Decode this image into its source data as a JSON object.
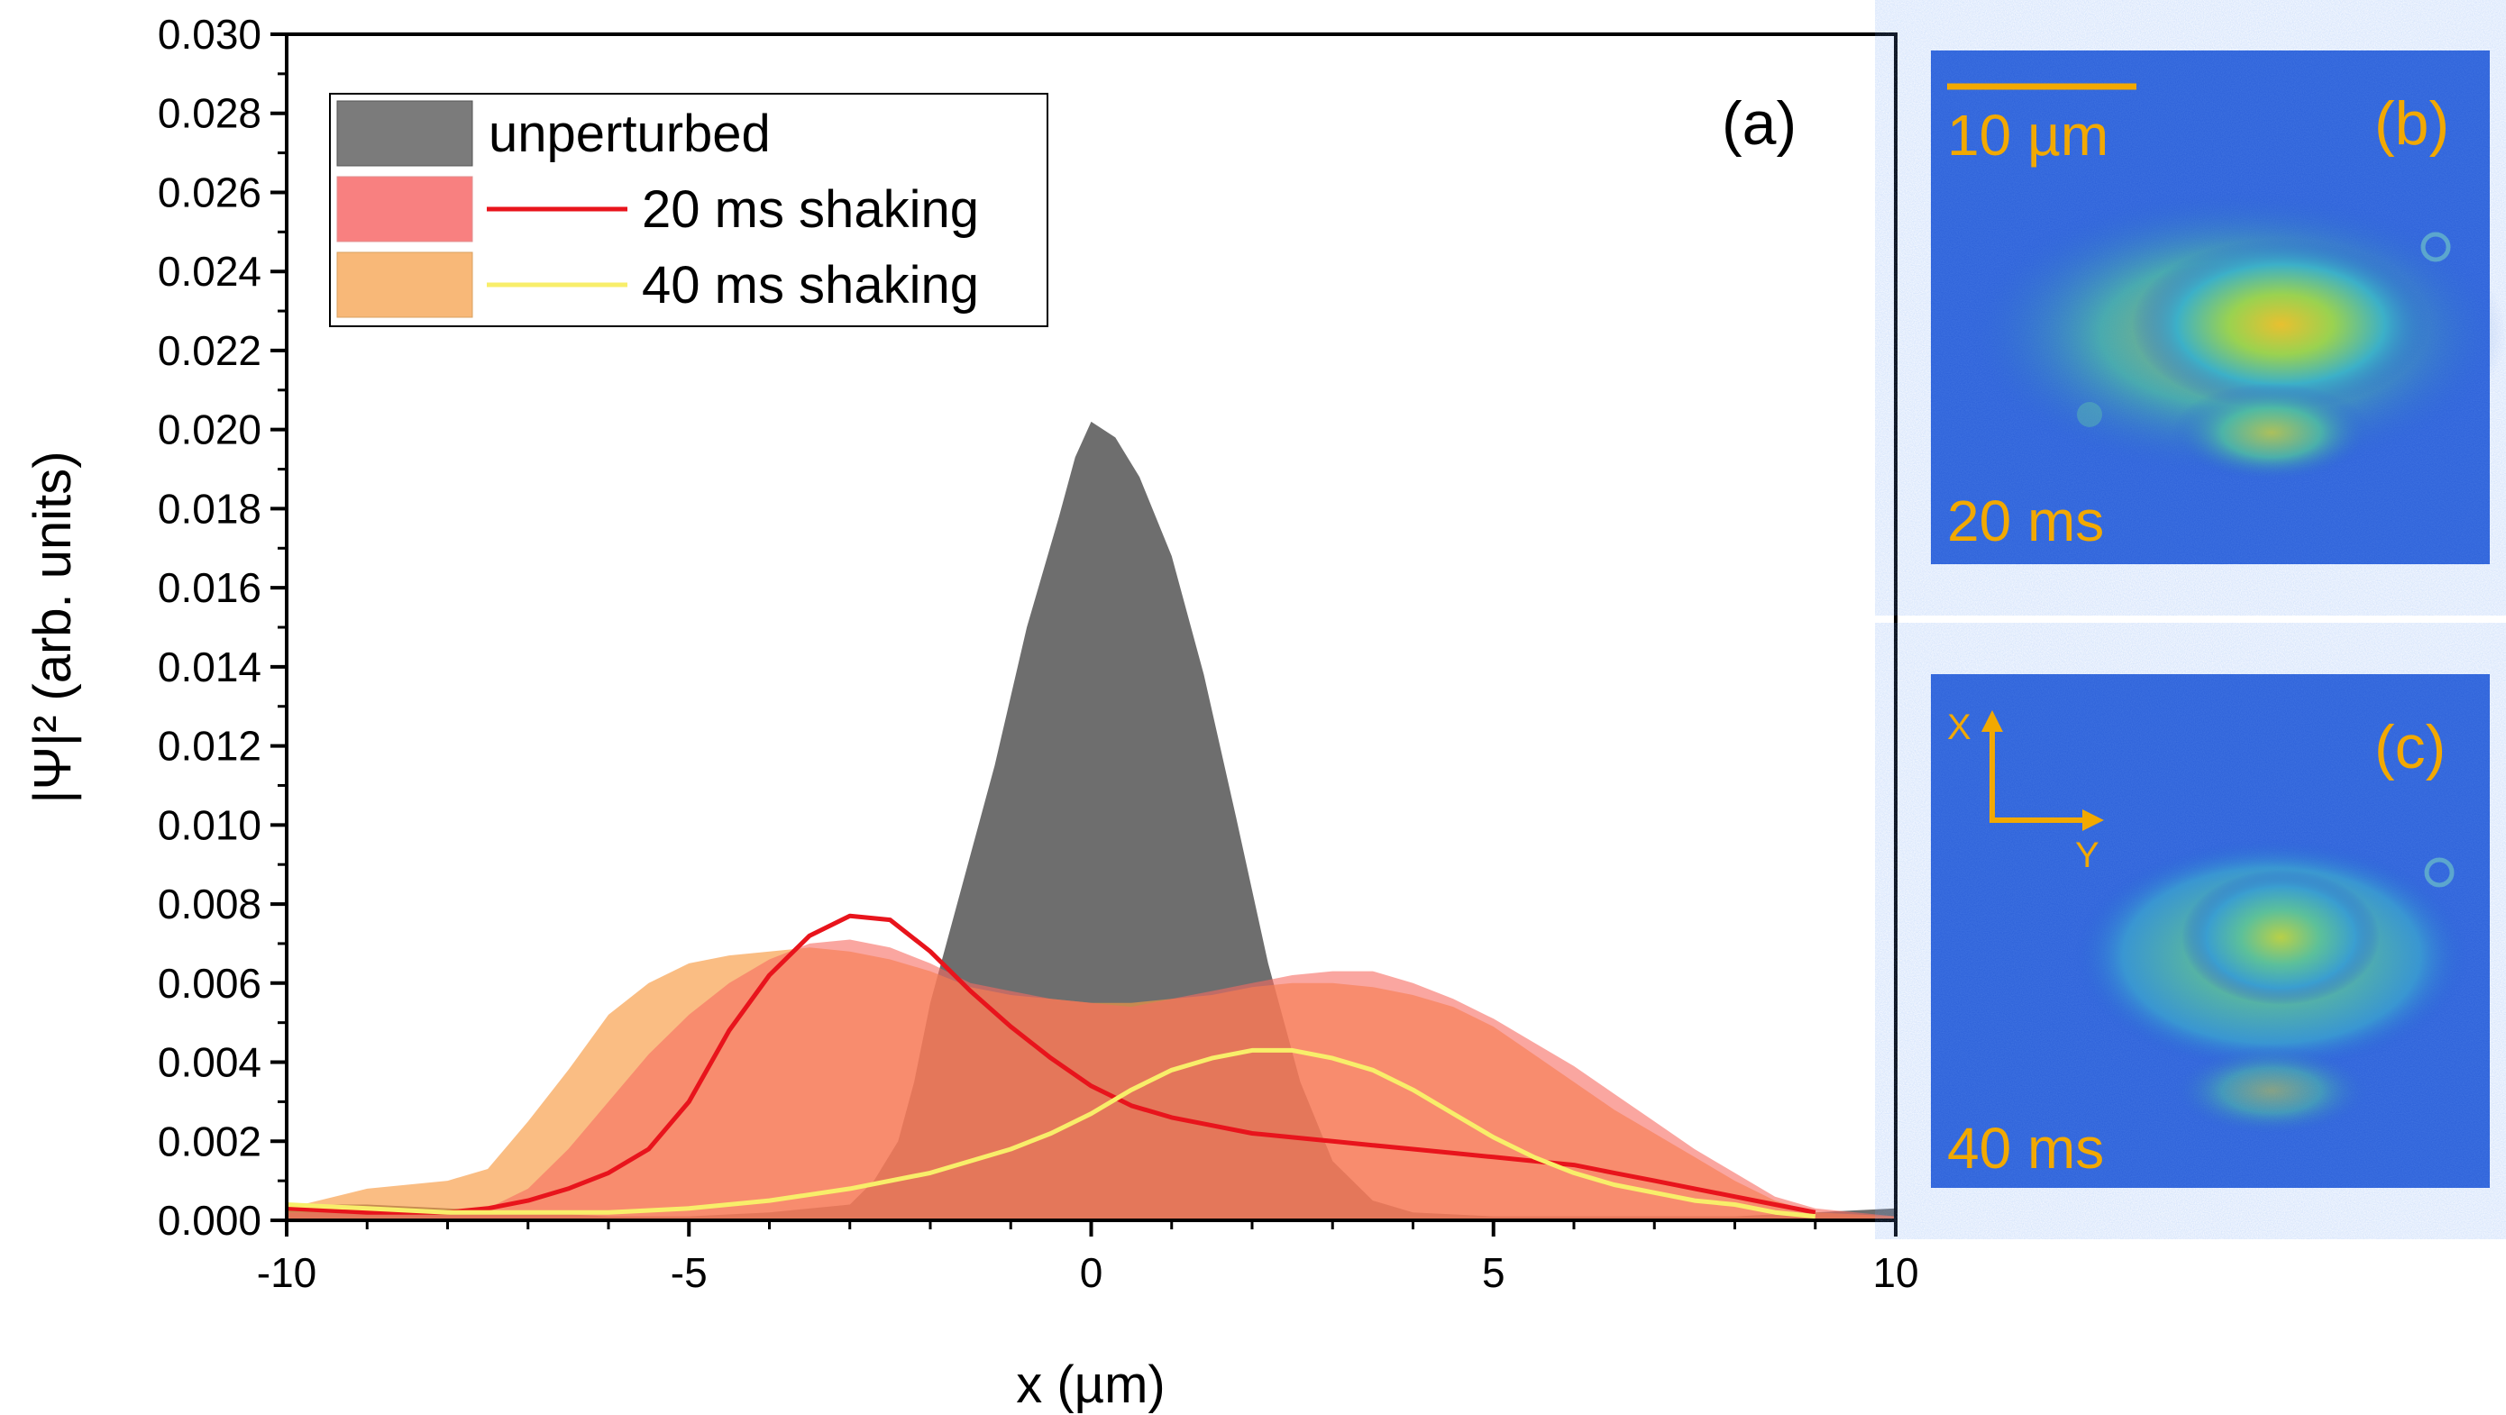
{
  "chart_data": {
    "type": "area",
    "panel_label": "(a)",
    "xlabel": "x (µm)",
    "ylabel": "|Ψ|² (arb. units)",
    "xlim": [
      -10,
      10
    ],
    "ylim": [
      0,
      0.03
    ],
    "x_ticks": [
      -10,
      -5,
      0,
      5,
      10
    ],
    "x_tick_labels": [
      "-10",
      "-5",
      "0",
      "5",
      "10"
    ],
    "y_ticks": [
      0,
      0.002,
      0.004,
      0.006,
      0.008,
      0.01,
      0.012,
      0.014,
      0.016,
      0.018,
      0.02,
      0.022,
      0.024,
      0.026,
      0.028,
      0.03
    ],
    "y_tick_labels": [
      "0.000",
      "0.002",
      "0.004",
      "0.006",
      "0.008",
      "0.010",
      "0.012",
      "0.014",
      "0.016",
      "0.018",
      "0.020",
      "0.022",
      "0.024",
      "0.026",
      "0.028",
      "0.030"
    ],
    "legend": {
      "placement": "top-left",
      "entries": [
        {
          "label": "unperturbed",
          "patch_color": "#7b7b7b",
          "line": false
        },
        {
          "label": "20 ms shaking",
          "patch_color": "#f88080",
          "line": true,
          "line_color": "#e8141c"
        },
        {
          "label": "40 ms shaking",
          "patch_color": "#f8b878",
          "line": true,
          "line_color": "#f8ee6a"
        }
      ]
    },
    "series": [
      {
        "name": "unperturbed",
        "kind": "area",
        "color": "#6e6e6e",
        "opacity": 1.0,
        "x": [
          -10,
          -9,
          -8,
          -7,
          -6,
          -5,
          -4,
          -3,
          -2.7,
          -2.4,
          -2.2,
          -2,
          -1.6,
          -1.2,
          -0.8,
          -0.4,
          -0.2,
          0,
          0.3,
          0.6,
          1,
          1.4,
          1.8,
          2.2,
          2.6,
          3,
          3.5,
          4,
          5,
          6,
          7,
          8,
          9,
          10
        ],
        "values": [
          0.0004,
          0.0004,
          0.0003,
          0.0002,
          0.0001,
          0.0001,
          0.0002,
          0.0004,
          0.001,
          0.002,
          0.0035,
          0.0055,
          0.0085,
          0.0115,
          0.015,
          0.0178,
          0.0193,
          0.0202,
          0.0198,
          0.0188,
          0.0168,
          0.0138,
          0.0102,
          0.0065,
          0.0035,
          0.0015,
          0.0005,
          0.0002,
          0.0001,
          0.0001,
          0.0001,
          0.0001,
          0.0002,
          0.0003
        ]
      },
      {
        "name": "40 ms shaking (fill)",
        "kind": "area",
        "color": "#f89a40",
        "opacity": 0.65,
        "x": [
          -10,
          -9,
          -8,
          -7.5,
          -7,
          -6.5,
          -6,
          -5.5,
          -5,
          -4.5,
          -4,
          -3.5,
          -3,
          -2.5,
          -2,
          -1.5,
          -1,
          -0.5,
          0,
          0.5,
          1,
          1.5,
          2,
          2.5,
          3,
          3.5,
          4,
          4.5,
          5,
          5.5,
          6,
          6.5,
          7,
          7.5,
          8,
          8.5,
          9,
          10
        ],
        "values": [
          0.0003,
          0.0008,
          0.001,
          0.0013,
          0.0025,
          0.0038,
          0.0052,
          0.006,
          0.0065,
          0.0067,
          0.0068,
          0.0069,
          0.0068,
          0.0066,
          0.0063,
          0.0059,
          0.0057,
          0.0056,
          0.0055,
          0.0055,
          0.0056,
          0.0057,
          0.0059,
          0.006,
          0.006,
          0.0059,
          0.0057,
          0.0054,
          0.0049,
          0.0042,
          0.0035,
          0.0028,
          0.0022,
          0.0016,
          0.001,
          0.0005,
          0.0002,
          0.0001
        ]
      },
      {
        "name": "20 ms shaking (fill)",
        "kind": "area",
        "color": "#f66a60",
        "opacity": 0.6,
        "x": [
          -10,
          -9,
          -8,
          -7.5,
          -7,
          -6.5,
          -6,
          -5.5,
          -5,
          -4.5,
          -4,
          -3.5,
          -3,
          -2.5,
          -2,
          -1.5,
          -1,
          -0.5,
          0,
          0.5,
          1,
          1.5,
          2,
          2.5,
          3,
          3.5,
          4,
          4.5,
          5,
          5.5,
          6,
          6.5,
          7,
          7.5,
          8,
          8.5,
          9,
          10
        ],
        "values": [
          0.0002,
          0.0002,
          0.0002,
          0.0003,
          0.0008,
          0.0018,
          0.003,
          0.0042,
          0.0052,
          0.006,
          0.0066,
          0.007,
          0.0071,
          0.0069,
          0.0065,
          0.006,
          0.0058,
          0.0056,
          0.0055,
          0.0054,
          0.0056,
          0.0058,
          0.006,
          0.0062,
          0.0063,
          0.0063,
          0.006,
          0.0056,
          0.0051,
          0.0045,
          0.0039,
          0.0032,
          0.0025,
          0.0018,
          0.0012,
          0.0006,
          0.0003,
          0.0001
        ]
      },
      {
        "name": "20 ms shaking",
        "kind": "line",
        "color": "#e8141c",
        "width": 5,
        "x": [
          -10,
          -9,
          -8,
          -7.5,
          -7,
          -6.5,
          -6,
          -5.5,
          -5,
          -4.5,
          -4,
          -3.5,
          -3,
          -2.5,
          -2,
          -1.5,
          -1,
          -0.5,
          0,
          0.5,
          1,
          1.5,
          2,
          2.5,
          3,
          3.5,
          4,
          4.5,
          5,
          5.5,
          6,
          6.5,
          7,
          7.5,
          8,
          8.5,
          9
        ],
        "values": [
          0.0003,
          0.0002,
          0.0002,
          0.0003,
          0.0005,
          0.0008,
          0.0012,
          0.0018,
          0.003,
          0.0048,
          0.0062,
          0.0072,
          0.0077,
          0.0076,
          0.0068,
          0.0058,
          0.0049,
          0.0041,
          0.0034,
          0.0029,
          0.0026,
          0.0024,
          0.0022,
          0.0021,
          0.002,
          0.0019,
          0.0018,
          0.0017,
          0.0016,
          0.0015,
          0.0014,
          0.0012,
          0.001,
          0.0008,
          0.0006,
          0.0004,
          0.0002
        ]
      },
      {
        "name": "40 ms shaking",
        "kind": "line",
        "color": "#f8ee6a",
        "width": 5,
        "x": [
          -10,
          -9,
          -8,
          -7,
          -6,
          -5,
          -4,
          -3,
          -2,
          -1,
          -0.5,
          0,
          0.5,
          1,
          1.5,
          2,
          2.5,
          3,
          3.5,
          4,
          4.5,
          5,
          5.5,
          6,
          6.5,
          7,
          7.5,
          8,
          8.5,
          9
        ],
        "values": [
          0.0004,
          0.0003,
          0.0002,
          0.0002,
          0.0002,
          0.0003,
          0.0005,
          0.0008,
          0.0012,
          0.0018,
          0.0022,
          0.0027,
          0.0033,
          0.0038,
          0.0041,
          0.0043,
          0.0043,
          0.0041,
          0.0038,
          0.0033,
          0.0027,
          0.0021,
          0.0016,
          0.0012,
          0.0009,
          0.0007,
          0.0005,
          0.0004,
          0.0002,
          0.0001
        ]
      }
    ]
  },
  "images": {
    "b": {
      "tag": "(b)",
      "scale_bar_label": "10 µm",
      "time_label": "20 ms"
    },
    "c": {
      "tag": "(c)",
      "time_label": "40 ms",
      "axis_x_label": "X",
      "axis_y_label": "Y"
    }
  },
  "colors": {
    "image_text": "#f2a900",
    "image_background": "#2a5ed8"
  }
}
